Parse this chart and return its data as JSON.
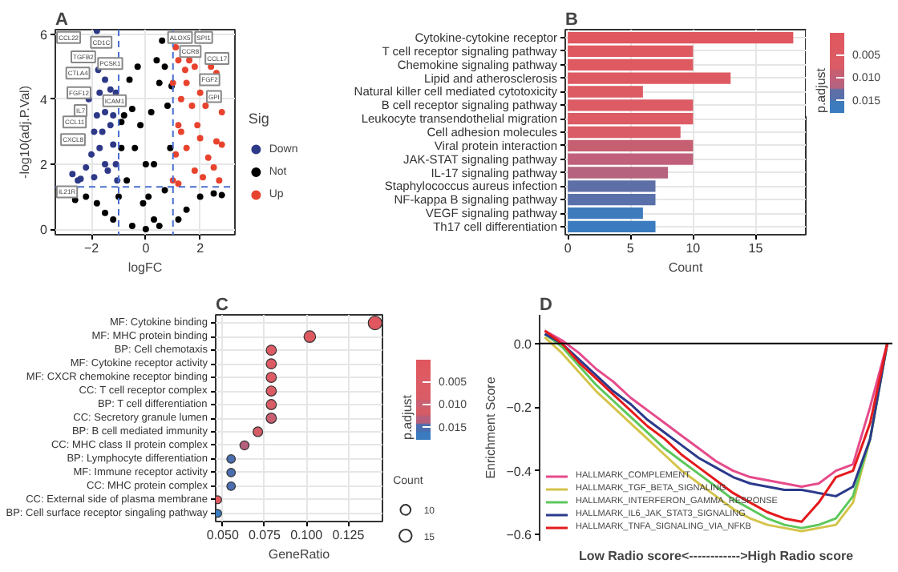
{
  "chart_data": [
    {
      "type": "scatter",
      "title": "A",
      "xlabel": "logFC",
      "ylabel": "-log10(adj.P.Val)",
      "legend_title": "Sig",
      "legend": "right",
      "grid": true,
      "marker": "circle",
      "xlim": [
        -3.33,
        3.28
      ],
      "ylim": [
        -0.17,
        6.14
      ],
      "xticks": [
        -2,
        0,
        2
      ],
      "yticks": [
        0,
        2,
        4,
        6
      ],
      "ref_lines": [
        {
          "axis": "x",
          "value": -1,
          "color": "#4a6fd0",
          "line_style": "dashed"
        },
        {
          "axis": "x",
          "value": 1,
          "color": "#4a6fd0",
          "line_style": "dashed"
        },
        {
          "axis": "y",
          "value": 1.3,
          "color": "#4a6fd0",
          "line_style": "dashed"
        }
      ],
      "series": [
        {
          "name": "Down",
          "color": "#2e3a87",
          "x": [
            -2.7,
            -2.5,
            -2.4,
            -2.2,
            -2.0,
            -1.9,
            -1.8,
            -1.7,
            -1.8,
            -1.75,
            -1.5,
            -1.5,
            -1.3,
            -1.2,
            -1.1,
            -1.05,
            -1.5,
            -1.7,
            -1.3,
            -1.2,
            -1.1,
            -1.9,
            -1.4,
            -1.6,
            -2.1
          ],
          "values": [
            1.7,
            1.5,
            1.55,
            1.9,
            2.3,
            3.0,
            3.5,
            4.2,
            6.1,
            4.9,
            4.6,
            3.6,
            3.2,
            2.6,
            2.0,
            1.5,
            2.0,
            2.5,
            4.3,
            3.5,
            4.2,
            1.6,
            1.8,
            3.0,
            4.0
          ]
        },
        {
          "name": "Not",
          "color": "#000000",
          "x": [
            -2.6,
            -2.2,
            -1.8,
            -1.5,
            -1.2,
            -1.0,
            -0.8,
            -0.6,
            -0.5,
            -0.3,
            -0.2,
            0,
            0.2,
            0.4,
            0.5,
            0.6,
            0.7,
            0.8,
            0.9,
            -0.9,
            -0.4,
            0.3,
            0,
            -0.5,
            0.5,
            1.5,
            2.0,
            2.5,
            2.8,
            1.2,
            -0.7,
            0.7,
            -0.1,
            0.1,
            -0.9,
            0.95,
            0.3
          ],
          "values": [
            0.9,
            1.0,
            0.8,
            0.5,
            0.3,
            1.0,
            3.5,
            4.6,
            3.7,
            5.0,
            3.2,
            2.0,
            3.6,
            5.2,
            4.5,
            5.8,
            5.0,
            3.8,
            2.5,
            2.5,
            2.5,
            2.0,
            0,
            0.1,
            0.1,
            0.6,
            1.0,
            1.1,
            1.05,
            0.3,
            1.5,
            1.2,
            0.8,
            1.0,
            3.3,
            4.4,
            0.3
          ]
        },
        {
          "name": "Up",
          "color": "#e8432e",
          "x": [
            1.0,
            1.1,
            1.2,
            1.3,
            1.2,
            1.45,
            1.6,
            1.8,
            1.5,
            1.7,
            2.0,
            2.2,
            2.4,
            2.6,
            2.8,
            2.6,
            2.8,
            2.5,
            2.7,
            2.3,
            2.0,
            1.8,
            1.5,
            1.1,
            1.3,
            1.9,
            2.1,
            1.2,
            1.0
          ],
          "values": [
            1.5,
            2.3,
            3.2,
            4.0,
            5.2,
            4.9,
            5.2,
            5.0,
            4.5,
            3.8,
            4.2,
            3.8,
            5.0,
            4.8,
            3.6,
            2.7,
            2.6,
            1.9,
            1.5,
            2.2,
            2.8,
            1.8,
            2.5,
            5.6,
            3.0,
            3.2,
            1.6,
            1.4,
            4.5
          ]
        }
      ],
      "annotations": [
        {
          "text": "CCL22",
          "x": -2.84,
          "y": 5.9
        },
        {
          "text": "CD1C",
          "x": -1.64,
          "y": 5.75
        },
        {
          "text": "TGFB2",
          "x": -2.3,
          "y": 5.3
        },
        {
          "text": "PCSK1",
          "x": -1.31,
          "y": 5.1
        },
        {
          "text": "CTLA4",
          "x": -2.5,
          "y": 4.8
        },
        {
          "text": "FGF12",
          "x": -2.46,
          "y": 4.2
        },
        {
          "text": "ICAM1",
          "x": -1.15,
          "y": 3.95
        },
        {
          "text": "IL7",
          "x": -2.4,
          "y": 3.65
        },
        {
          "text": "CCL11",
          "x": -2.62,
          "y": 3.3
        },
        {
          "text": "CXCL8",
          "x": -2.68,
          "y": 2.76
        },
        {
          "text": "IL21R",
          "x": -2.9,
          "y": 1.15
        },
        {
          "text": "ALOX5",
          "x": 1.26,
          "y": 5.9
        },
        {
          "text": "SPI1",
          "x": 2.13,
          "y": 5.9
        },
        {
          "text": "CCR8",
          "x": 1.64,
          "y": 5.47
        },
        {
          "text": "CCL17",
          "x": 2.62,
          "y": 5.25
        },
        {
          "text": "FGF2",
          "x": 2.35,
          "y": 4.6
        },
        {
          "text": "GPI",
          "x": 2.51,
          "y": 4.08
        }
      ]
    },
    {
      "type": "bar",
      "title": "B",
      "orientation": "horizontal",
      "xlabel": "Count",
      "clabel": "p.adjust",
      "grid": true,
      "xlim": [
        -0.2,
        19
      ],
      "xticks": [
        0,
        5,
        10,
        15
      ],
      "clim": [
        0.0179,
        0.0002
      ],
      "cticks": [
        {
          "value": 0.005,
          "label": "0.005"
        },
        {
          "value": 0.01,
          "label": "0.010"
        },
        {
          "value": 0.015,
          "label": "0.015"
        }
      ],
      "categories": [
        "Cytokine-cytokine receptor",
        "T cell receptor signaling pathway",
        "Chemokine signaling pathway",
        "Lipid and atherosclerosis",
        "Natural killer cell mediated cytotoxicity",
        "B cell receptor signaling pathway",
        "Leukocyte transendothelial migration",
        "Cell adhesion molecules",
        "Viral protein interaction",
        "JAK-STAT signaling pathway",
        "IL-17 signaling pathway",
        "Staphylococcus aureus infection",
        "NF-kappa B signaling pathway",
        "VEGF signaling pathway",
        "Th17 cell differentiation"
      ],
      "values": [
        18,
        10,
        10,
        13,
        6,
        10,
        10,
        9,
        10,
        10,
        8,
        7,
        7,
        6,
        7
      ],
      "colors": [
        "#e0575f",
        "#df5961",
        "#df5961",
        "#de5a62",
        "#dd5b63",
        "#dc5b64",
        "#dc5b64",
        "#d95c66",
        "#c65f71",
        "#c0607a",
        "#b5637f",
        "#5e6fa8",
        "#5a70aa",
        "#3e7bbd",
        "#3a7cbf"
      ]
    },
    {
      "type": "bubble",
      "title": "C",
      "orientation": "horizontal",
      "xlabel": "GeneRatio",
      "clabel": "p.adjust",
      "legend_title": "Count",
      "grid": true,
      "xlim": [
        0.0458,
        0.1454
      ],
      "xticks": [
        {
          "value": 0.05,
          "label": "0.050"
        },
        {
          "value": 0.075,
          "label": "0.075"
        },
        {
          "value": 0.1,
          "label": "0.100"
        },
        {
          "value": 0.125,
          "label": "0.125"
        }
      ],
      "clim": [
        0.0179,
        0.0002
      ],
      "cticks": [
        {
          "value": 0.005,
          "label": "0.005"
        },
        {
          "value": 0.01,
          "label": "0.010"
        },
        {
          "value": 0.015,
          "label": "0.015"
        }
      ],
      "size_legend": [
        10,
        15
      ],
      "categories": [
        "MF: Cytokine binding",
        "MF: MHC protein binding",
        "BP: Cell chemotaxis",
        "MF: Cytokine receptor activity",
        "MF: CXCR chemokine receptor binding",
        "CC: T cell receptor complex",
        "BP: T cell differentiation",
        "CC: Secretory granule lumen",
        "BP: B cell mediated immunity",
        "CC: MHC class II protein complex",
        "BP: Lymphocyte differentiation",
        "MF: Immune receptor activity",
        "CC: MHC protein complex",
        "CC: External side of plasma membrane",
        "BP: Cell surface receptor singaling pathway"
      ],
      "values": [
        0.141,
        0.102,
        0.079,
        0.079,
        0.079,
        0.079,
        0.079,
        0.079,
        0.071,
        0.063,
        0.055,
        0.055,
        0.055,
        0.047,
        0.047
      ],
      "sizes": [
        18,
        13,
        10,
        10,
        10,
        10,
        10,
        10,
        9,
        8,
        7,
        7,
        7,
        6,
        6
      ],
      "colors": [
        "#e0575f",
        "#df5961",
        "#dc5b64",
        "#dc5b64",
        "#dc5b64",
        "#db5c65",
        "#d95c66",
        "#c95f70",
        "#d35c66",
        "#b55f7c",
        "#4a6eaf",
        "#4a6eaf",
        "#4a6eaf",
        "#e0575f",
        "#3a7cbf"
      ]
    },
    {
      "type": "line",
      "title": "D",
      "ylabel": "Enrichment Score",
      "xlabel": "Low Radio score<------------>High Radio score",
      "legend": "bottom left",
      "grid": false,
      "tick_labels": "y",
      "ylim": [
        -0.62,
        0.09
      ],
      "yticks": [
        {
          "value": 0,
          "label": "0.0"
        },
        -0.2,
        -0.4,
        -0.6
      ],
      "ref_lines": [
        {
          "axis": "y",
          "value": 0,
          "color": "#000000",
          "line_style": "solid"
        }
      ],
      "categories": [
        null,
        null,
        null,
        null,
        null,
        null,
        null,
        null,
        null,
        null,
        null,
        null,
        null,
        null,
        null,
        null,
        null,
        null,
        null,
        null,
        null
      ],
      "series": [
        {
          "name": "HALLMARK_COMPLEMENT",
          "color": "#e64b8b",
          "values": [
            0.04,
            0.01,
            -0.03,
            -0.08,
            -0.12,
            -0.17,
            -0.21,
            -0.25,
            -0.29,
            -0.33,
            -0.37,
            -0.4,
            -0.42,
            -0.43,
            -0.44,
            -0.45,
            -0.44,
            -0.4,
            -0.38,
            -0.2,
            0
          ]
        },
        {
          "name": "HALLMARK_TGF_BETA_SIGNALING",
          "color": "#d4c44a",
          "values": [
            0.02,
            -0.03,
            -0.09,
            -0.15,
            -0.2,
            -0.25,
            -0.3,
            -0.35,
            -0.4,
            -0.44,
            -0.48,
            -0.52,
            -0.55,
            -0.57,
            -0.58,
            -0.59,
            -0.58,
            -0.57,
            -0.5,
            -0.3,
            0
          ]
        },
        {
          "name": "HALLMARK_INTERFERON_GAMMA_RESPONSE",
          "color": "#5cc85c",
          "values": [
            0.03,
            -0.01,
            -0.07,
            -0.13,
            -0.18,
            -0.23,
            -0.28,
            -0.33,
            -0.37,
            -0.41,
            -0.45,
            -0.49,
            -0.52,
            -0.55,
            -0.57,
            -0.58,
            -0.57,
            -0.55,
            -0.48,
            -0.3,
            0
          ]
        },
        {
          "name": "HALLMARK_IL6_JAK_STAT3_SIGNALING",
          "color": "#2b3a8c",
          "values": [
            0.03,
            0.0,
            -0.05,
            -0.1,
            -0.15,
            -0.19,
            -0.24,
            -0.28,
            -0.32,
            -0.36,
            -0.39,
            -0.42,
            -0.44,
            -0.45,
            -0.46,
            -0.46,
            -0.47,
            -0.48,
            -0.45,
            -0.3,
            0
          ]
        },
        {
          "name": "HALLMARK_TNFA_SIGNALING_VIA_NFKB",
          "color": "#e41a1c",
          "values": [
            0.04,
            0.0,
            -0.06,
            -0.11,
            -0.16,
            -0.21,
            -0.26,
            -0.3,
            -0.35,
            -0.39,
            -0.43,
            -0.47,
            -0.5,
            -0.53,
            -0.55,
            -0.56,
            -0.5,
            -0.42,
            -0.4,
            -0.25,
            0
          ]
        }
      ]
    }
  ]
}
